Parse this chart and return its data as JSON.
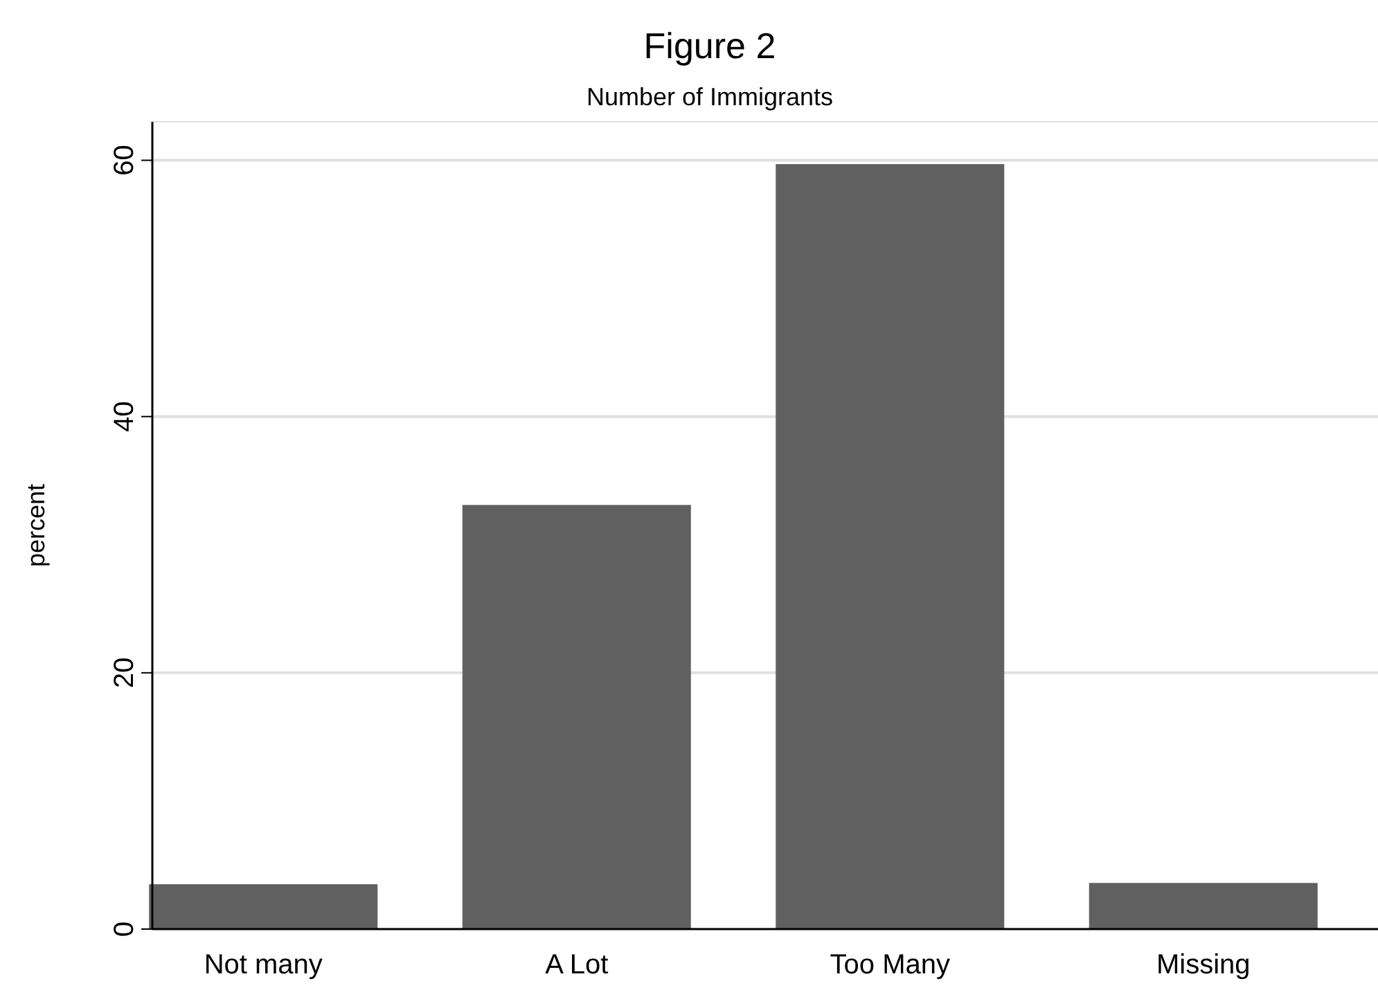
{
  "chart_data": {
    "type": "bar",
    "title": "Figure 2",
    "subtitle": "Number of Immigrants",
    "ylabel": "percent",
    "categories": [
      "Not many",
      "A Lot",
      "Too Many",
      "Missing"
    ],
    "values": [
      3.5,
      33.1,
      59.7,
      3.6
    ],
    "color": "#606060",
    "ylim": [
      0,
      63
    ],
    "yticks": [
      0,
      20,
      40,
      60
    ],
    "grid": "y"
  }
}
